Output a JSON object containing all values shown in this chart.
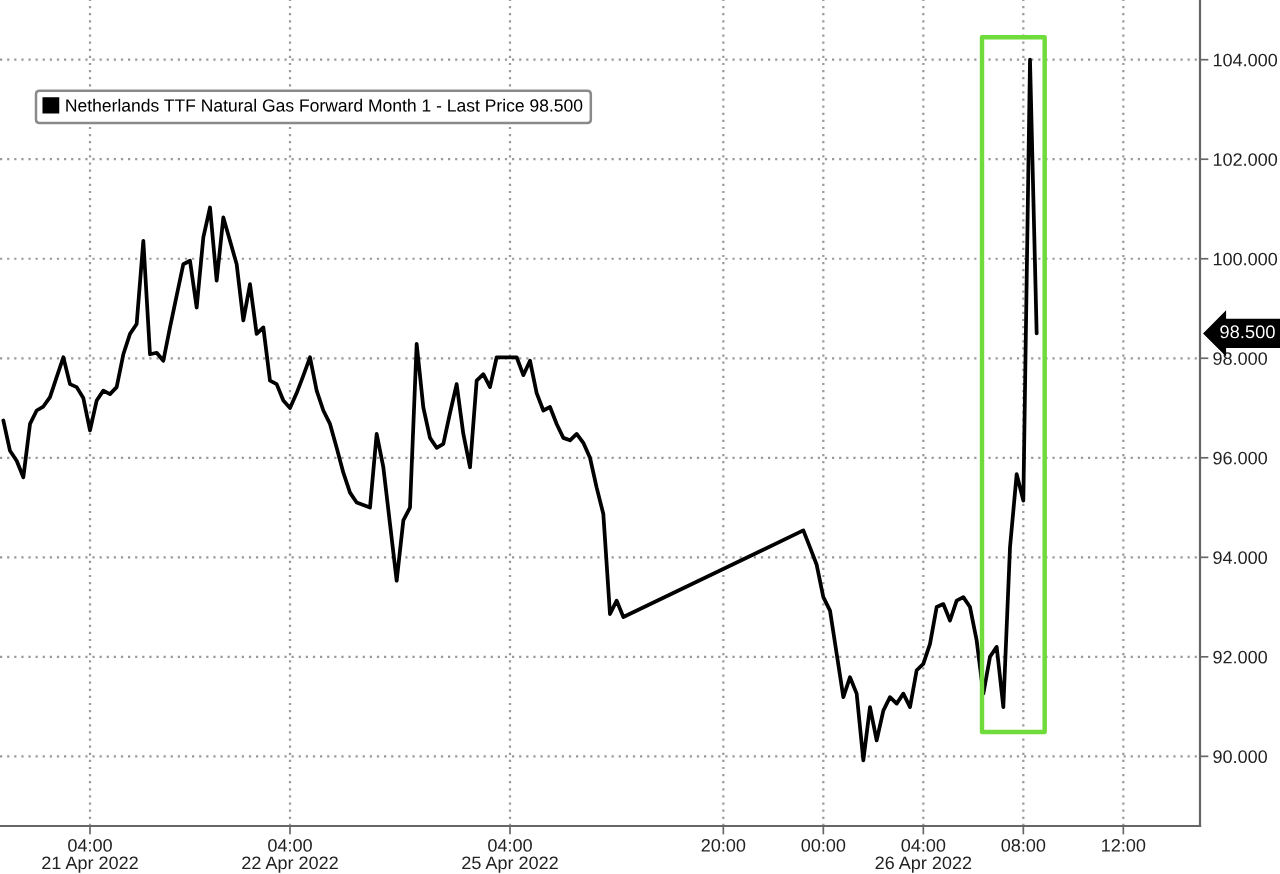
{
  "chart_data": {
    "type": "line",
    "categories": [
      null,
      null,
      null,
      null,
      null,
      null,
      null,
      null,
      null,
      null,
      null,
      null,
      null,
      "04:00\n21 Apr 2022",
      null,
      null,
      null,
      null,
      null,
      null,
      null,
      null,
      null,
      null,
      null,
      null,
      null,
      null,
      null,
      null,
      null,
      null,
      null,
      null,
      null,
      null,
      null,
      null,
      null,
      null,
      null,
      null,
      null,
      "04:00\n22 Apr 2022",
      null,
      null,
      null,
      null,
      null,
      null,
      null,
      null,
      null,
      null,
      null,
      null,
      null,
      null,
      null,
      null,
      null,
      null,
      null,
      null,
      null,
      null,
      null,
      null,
      null,
      null,
      null,
      null,
      null,
      null,
      null,
      null,
      "04:00\n25 Apr 2022",
      null,
      null,
      null,
      null,
      null,
      null,
      null,
      null,
      null,
      null,
      null,
      null,
      null,
      null,
      null,
      null,
      null,
      null,
      null,
      null,
      null,
      null,
      null,
      null,
      null,
      null,
      null,
      null,
      null,
      null,
      null,
      "20:00",
      null,
      null,
      null,
      null,
      null,
      null,
      null,
      null,
      null,
      null,
      null,
      null,
      null,
      null,
      "00:00",
      null,
      null,
      null,
      null,
      null,
      null,
      null,
      null,
      null,
      null,
      null,
      null,
      null,
      null,
      "04:00\n26 Apr 2022",
      null,
      null,
      null,
      null,
      null,
      null,
      null,
      null,
      null,
      null,
      null,
      null,
      null,
      null,
      "08:00",
      null,
      null,
      null,
      null,
      null,
      null,
      null,
      null,
      null,
      null,
      null,
      null,
      null,
      null,
      "12:00",
      null,
      null,
      null,
      null,
      null,
      null,
      null,
      null,
      null,
      null,
      null
    ],
    "series": [
      {
        "name": "Netherlands TTF Natural Gas Forward Month 1 - Last Price 98.500",
        "color": "#000000",
        "values": [
          96.75,
          96.14,
          95.94,
          95.61,
          96.68,
          96.95,
          97.03,
          97.22,
          97.62,
          98.02,
          97.48,
          97.42,
          97.2,
          96.55,
          97.15,
          97.35,
          97.28,
          97.42,
          98.08,
          98.49,
          98.69,
          100.36,
          98.08,
          98.11,
          97.95,
          98.62,
          99.26,
          99.89,
          99.96,
          99.02,
          100.43,
          101.03,
          99.56,
          100.83,
          100.36,
          99.89,
          98.76,
          99.49,
          98.49,
          98.62,
          97.55,
          97.48,
          97.15,
          97.0,
          97.3,
          97.65,
          98.02,
          97.35,
          96.95,
          96.68,
          96.2,
          95.7,
          95.3,
          95.1,
          95.05,
          95.0,
          96.48,
          95.81,
          94.67,
          93.53,
          94.74,
          95.0,
          98.29,
          97.01,
          96.4,
          96.2,
          96.28,
          96.9,
          97.48,
          96.48,
          95.81,
          97.55,
          97.68,
          97.42,
          98.02,
          98.02,
          98.02,
          98.02,
          97.66,
          97.95,
          97.3,
          96.95,
          97.02,
          96.68,
          96.4,
          96.35,
          96.48,
          96.3,
          96.0,
          95.4,
          94.87,
          92.86,
          93.13,
          92.8,
          null,
          null,
          null,
          null,
          null,
          null,
          null,
          null,
          null,
          null,
          null,
          null,
          null,
          null,
          null,
          null,
          null,
          null,
          null,
          null,
          null,
          null,
          null,
          null,
          null,
          null,
          94.54,
          94.2,
          93.85,
          93.2,
          92.93,
          92.06,
          91.19,
          91.59,
          91.26,
          89.92,
          90.99,
          90.32,
          90.92,
          91.19,
          91.06,
          91.26,
          90.99,
          91.73,
          91.86,
          92.26,
          93.0,
          93.06,
          92.73,
          93.13,
          93.2,
          93.0,
          92.33,
          91.26,
          92.0,
          92.2,
          90.99,
          94.2,
          95.67,
          95.14,
          104.0,
          98.5,
          null,
          null,
          null,
          null,
          null,
          null,
          null,
          null,
          null,
          null,
          null,
          null,
          null,
          null,
          null,
          null,
          null,
          null,
          null,
          null,
          null,
          null,
          null,
          null
        ]
      }
    ],
    "ylim": [
      88.6,
      105.2
    ],
    "yticks": [
      {
        "value": 90,
        "label": "90.000"
      },
      {
        "value": 92,
        "label": "92.000"
      },
      {
        "value": 94,
        "label": "94.000"
      },
      {
        "value": 96,
        "label": "96.000"
      },
      {
        "value": 98,
        "label": "98.000"
      },
      {
        "value": 100,
        "label": "100.000"
      },
      {
        "value": 102,
        "label": "102.000"
      },
      {
        "value": 104,
        "label": "104.000"
      }
    ],
    "grid": true,
    "legend": "top left",
    "annotations": [
      "98.500"
    ]
  }
}
